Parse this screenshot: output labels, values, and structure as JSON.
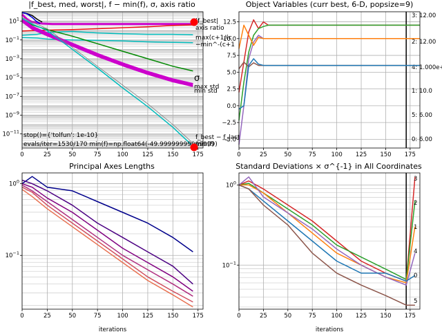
{
  "chart_data": [
    {
      "id": "p1",
      "type": "line",
      "title": "|f_best, med, worst|, f − min(f), σ, axis ratio",
      "xlabel": "",
      "xlim": [
        0,
        180
      ],
      "ylim_log10": [
        -12.5,
        2
      ],
      "x_ticks": [
        0,
        25,
        50,
        75,
        100,
        125,
        150,
        175
      ],
      "y_tick_labels": [
        "10^{1}",
        "10^{-1}",
        "10^{-3}",
        "10^{-5}",
        "10^{-7}",
        "10^{-9}",
        "10^{-11}"
      ],
      "y_tick_exps": [
        1,
        -1,
        -3,
        -5,
        -7,
        -9,
        -11
      ],
      "grid": true,
      "series": [
        {
          "name": "|fbest|",
          "color": "#cc00cc",
          "style": "thick",
          "x": [
            0,
            5,
            10,
            20,
            30,
            40,
            170
          ],
          "log10y": [
            1.7,
            1.2,
            0.9,
            0.75,
            0.7,
            0.7,
            0.7
          ]
        },
        {
          "name": "axis ratio",
          "color": "#ee1111",
          "x": [
            0,
            10,
            25,
            50,
            75,
            100,
            125,
            150,
            170
          ],
          "log10y": [
            -0.05,
            0.0,
            0.05,
            0.1,
            0.2,
            0.3,
            0.4,
            0.55,
            0.6
          ]
        },
        {
          "name": "max(c+1/(c",
          "color": "#00bcbc",
          "x": [
            0,
            15,
            25,
            50,
            75,
            100,
            125,
            150,
            170
          ],
          "log10y": [
            -0.5,
            -0.4,
            -0.2,
            -0.1,
            -0.25,
            -0.35,
            -0.4,
            -0.4,
            -0.45
          ]
        },
        {
          "name": "min(c+1",
          "color": "#00bcbc",
          "x": [
            0,
            15,
            25,
            50,
            75,
            100,
            125,
            150,
            170
          ],
          "log10y": [
            -0.75,
            -0.8,
            -0.9,
            -1.0,
            -1.05,
            -1.1,
            -1.2,
            -1.25,
            -1.3
          ]
        },
        {
          "name": "σ",
          "color": "#008800",
          "x": [
            0,
            10,
            25,
            50,
            75,
            100,
            125,
            150,
            170
          ],
          "log10y": [
            1.2,
            0.6,
            0.1,
            -0.6,
            -1.4,
            -2.2,
            -3.0,
            -3.8,
            -4.3
          ]
        },
        {
          "name": "max std",
          "color": "#cc00cc",
          "style": "thick",
          "x": [
            0,
            10,
            25,
            50,
            75,
            100,
            125,
            150,
            170
          ],
          "log10y": [
            1.2,
            0.4,
            -0.3,
            -1.4,
            -2.5,
            -3.5,
            -4.4,
            -5.2,
            -5.7
          ]
        },
        {
          "name": "min std",
          "color": "#cc00cc",
          "style": "thick",
          "x": [
            0,
            10,
            25,
            50,
            75,
            100,
            125,
            150,
            170
          ],
          "log10y": [
            1.0,
            0.2,
            -0.5,
            -1.6,
            -2.7,
            -3.7,
            -4.6,
            -5.4,
            -5.9
          ]
        },
        {
          "name": "",
          "color": "#00bcbc",
          "x": [
            0,
            10,
            25,
            50,
            75,
            100,
            125,
            150,
            170
          ],
          "log10y": [
            1.3,
            0.7,
            0.0,
            -2.0,
            -4.0,
            -6.1,
            -8.1,
            -10.3,
            -12.3
          ]
        },
        {
          "name": "",
          "color": "#808080",
          "style": "thin",
          "x": [
            0,
            10,
            25,
            50,
            75,
            100,
            125,
            150,
            170
          ],
          "log10y": [
            1.4,
            0.9,
            0.2,
            -1.8,
            -3.8,
            -5.8,
            -7.8,
            -10.0,
            -12.0
          ]
        },
        {
          "name": "",
          "color": "#000000",
          "x": [
            0,
            5,
            10,
            15,
            20
          ],
          "log10y": [
            1.9,
            1.8,
            1.6,
            1.2,
            0.9
          ]
        },
        {
          "name": "",
          "color": "#0000dd",
          "x": [
            0,
            3,
            6,
            10,
            14,
            18
          ],
          "log10y": [
            1.9,
            1.85,
            1.7,
            1.4,
            1.0,
            0.7
          ]
        }
      ],
      "labels": {
        "fbest": "|f_best|",
        "axis_ratio": "axis ratio",
        "maxc": "max(c+1/(c",
        "minc": "−min^-(c+1",
        "sigma": "σ",
        "max_std": "max std",
        "min_std": "min std",
        "fbest_minus": "f_best − f_last",
        "minf": "min(f)"
      },
      "stop_text": "stop()={'tolfun': 1e-10}",
      "evals_text": "evals/iter=1530/170 min(f)=np.float64(-49.99999999999999)"
    },
    {
      "id": "p2",
      "type": "line",
      "title": "Object Variables (curr best, 6-D, popsize=9)",
      "xlim": [
        0,
        185
      ],
      "ylim": [
        -6.3,
        14
      ],
      "x_ticks": [
        0,
        25,
        50,
        75,
        100,
        125,
        150,
        175
      ],
      "y_ticks": [
        -5.0,
        -2.5,
        0.0,
        2.5,
        5.0,
        7.5,
        10.0,
        12.5
      ],
      "y_tick_labels": [
        "−5.0",
        "−2.5",
        "0.0",
        "2.5",
        "5.0",
        "7.5",
        "10.0",
        "12.5"
      ],
      "vline_x": 171,
      "grid": true,
      "series": [
        {
          "name": "3",
          "color": "#d62728",
          "final_label": "3: 12.00",
          "x": [
            0,
            5,
            10,
            15,
            20,
            25,
            30,
            40,
            171,
            185
          ],
          "y": [
            2.0,
            6.5,
            11.0,
            12.8,
            11.5,
            12.5,
            12.0,
            12.0,
            12.0,
            12.0
          ]
        },
        {
          "name": "2",
          "color": "#2ca02c",
          "final_label": "2: 12.00",
          "x": [
            0,
            5,
            10,
            15,
            20,
            25,
            30,
            40,
            171,
            185
          ],
          "y": [
            -2.2,
            3.5,
            8.0,
            10.5,
            11.5,
            11.8,
            12.0,
            12.0,
            12.0,
            12.0
          ]
        },
        {
          "name": "4",
          "color": "#9467bd",
          "final_label": "4: 1.000e+01",
          "x": [
            0,
            5,
            10,
            15,
            20,
            25,
            30,
            171,
            185
          ],
          "y": [
            -5.8,
            0.0,
            7.0,
            9.5,
            10.5,
            10.0,
            10.0,
            10.0,
            10.0
          ]
        },
        {
          "name": "1",
          "color": "#ff7f0e",
          "final_label": "1: 10.0",
          "x": [
            0,
            5,
            10,
            15,
            20,
            25,
            30,
            171,
            185
          ],
          "y": [
            8.5,
            12.0,
            10.5,
            9.0,
            10.2,
            10.0,
            10.0,
            10.0,
            10.0
          ]
        },
        {
          "name": "5",
          "color": "#8c564b",
          "final_label": "5: 6.00",
          "x": [
            0,
            5,
            10,
            15,
            20,
            25,
            30,
            171,
            185
          ],
          "y": [
            5.5,
            6.5,
            5.8,
            6.4,
            6.0,
            6.0,
            6.0,
            6.0,
            6.0
          ]
        },
        {
          "name": "0",
          "color": "#1f77b4",
          "final_label": "0: 6.00",
          "x": [
            0,
            5,
            10,
            15,
            20,
            25,
            30,
            171,
            185
          ],
          "y": [
            -0.5,
            0.0,
            6.0,
            7.0,
            6.2,
            6.0,
            6.0,
            6.0,
            6.0
          ]
        }
      ]
    },
    {
      "id": "p3",
      "type": "line",
      "title": "Principal Axes Lengths",
      "xlabel": "iterations",
      "xlim": [
        0,
        180
      ],
      "ylim_log10": [
        -1.75,
        0.15
      ],
      "x_ticks": [
        0,
        25,
        50,
        75,
        100,
        125,
        150,
        175
      ],
      "y_tick_labels": [
        "10^{0}",
        "10^{-1}"
      ],
      "y_tick_exps": [
        0,
        -1
      ],
      "grid": true,
      "series": [
        {
          "color": "#00008b",
          "x": [
            0,
            10,
            25,
            50,
            75,
            100,
            125,
            150,
            170
          ],
          "log10y": [
            0.0,
            0.1,
            -0.05,
            -0.1,
            -0.25,
            -0.4,
            -0.55,
            -0.75,
            -0.95
          ]
        },
        {
          "color": "#4b0082",
          "x": [
            0,
            10,
            25,
            50,
            75,
            100,
            125,
            150,
            170
          ],
          "log10y": [
            0.05,
            0.0,
            -0.1,
            -0.3,
            -0.55,
            -0.75,
            -0.95,
            -1.15,
            -1.4
          ]
        },
        {
          "color": "#800080",
          "x": [
            0,
            10,
            25,
            50,
            75,
            100,
            125,
            150,
            170
          ],
          "log10y": [
            0.0,
            -0.05,
            -0.2,
            -0.4,
            -0.65,
            -0.9,
            -1.1,
            -1.3,
            -1.5
          ]
        },
        {
          "color": "#b03080",
          "x": [
            0,
            10,
            25,
            50,
            75,
            100,
            125,
            150,
            170
          ],
          "log10y": [
            -0.02,
            -0.1,
            -0.25,
            -0.5,
            -0.75,
            -1.0,
            -1.2,
            -1.4,
            -1.57
          ]
        },
        {
          "color": "#d05060",
          "x": [
            0,
            10,
            25,
            50,
            75,
            100,
            125,
            150,
            170
          ],
          "log10y": [
            -0.05,
            -0.12,
            -0.3,
            -0.55,
            -0.8,
            -1.05,
            -1.3,
            -1.5,
            -1.65
          ]
        },
        {
          "color": "#e87050",
          "x": [
            0,
            10,
            25,
            50,
            75,
            100,
            125,
            150,
            170
          ],
          "log10y": [
            -0.08,
            -0.18,
            -0.35,
            -0.6,
            -0.85,
            -1.1,
            -1.35,
            -1.55,
            -1.72
          ]
        }
      ]
    },
    {
      "id": "p4",
      "type": "line",
      "title": "Standard Deviations × σ^{-1} in All Coordinates",
      "xlabel": "iterations",
      "xlim": [
        0,
        185
      ],
      "ylim_log10": [
        -1.55,
        0.15
      ],
      "x_ticks": [
        0,
        25,
        50,
        75,
        100,
        125,
        150,
        175
      ],
      "y_tick_labels": [
        "10^{0}",
        "10^{-1}"
      ],
      "y_tick_exps": [
        0,
        -1
      ],
      "vline_x": 171,
      "grid": true,
      "series": [
        {
          "name": "3",
          "color": "#d62728",
          "x": [
            0,
            10,
            25,
            50,
            75,
            100,
            125,
            150,
            171,
            180
          ],
          "log10y": [
            0.0,
            0.05,
            -0.05,
            -0.25,
            -0.45,
            -0.7,
            -0.95,
            -1.1,
            -1.2,
            0.1
          ]
        },
        {
          "name": "2",
          "color": "#2ca02c",
          "x": [
            0,
            10,
            25,
            50,
            75,
            100,
            125,
            150,
            171,
            180
          ],
          "log10y": [
            0.0,
            0.02,
            -0.1,
            -0.3,
            -0.5,
            -0.75,
            -0.9,
            -1.05,
            -1.18,
            -0.2
          ]
        },
        {
          "name": "1",
          "color": "#ff7f0e",
          "x": [
            0,
            10,
            25,
            50,
            75,
            100,
            125,
            150,
            171,
            180
          ],
          "log10y": [
            0.0,
            0.0,
            -0.1,
            -0.35,
            -0.6,
            -0.85,
            -1.0,
            -1.15,
            -1.22,
            -0.52
          ]
        },
        {
          "name": "4",
          "color": "#9467bd",
          "x": [
            0,
            10,
            25,
            50,
            75,
            100,
            125,
            150,
            171,
            180
          ],
          "log10y": [
            0.0,
            0.1,
            -0.15,
            -0.35,
            -0.55,
            -0.8,
            -1.0,
            -1.15,
            -1.25,
            -0.85
          ]
        },
        {
          "name": "0",
          "color": "#1f77b4",
          "x": [
            0,
            10,
            25,
            50,
            75,
            100,
            125,
            150,
            171,
            180
          ],
          "log10y": [
            0.0,
            -0.05,
            -0.2,
            -0.45,
            -0.7,
            -0.95,
            -1.1,
            -1.1,
            -1.2,
            -1.13
          ]
        },
        {
          "name": "5",
          "color": "#8c564b",
          "x": [
            0,
            10,
            25,
            50,
            75,
            100,
            125,
            150,
            171,
            180
          ],
          "log10y": [
            0.0,
            -0.05,
            -0.25,
            -0.5,
            -0.85,
            -1.1,
            -1.25,
            -1.38,
            -1.5,
            -1.5
          ]
        }
      ],
      "end_labels": [
        "3",
        "2",
        "1",
        "4",
        "0",
        "5"
      ]
    }
  ]
}
